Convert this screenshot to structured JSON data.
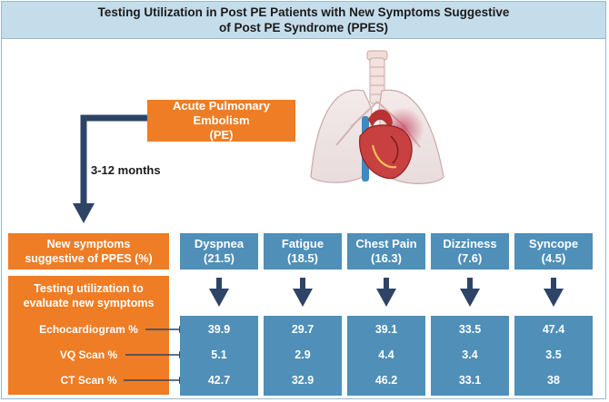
{
  "title": {
    "line1": "Testing Utilization in Post PE Patients with New Symptoms Suggestive",
    "line2": "of Post PE Syndrome (PPES)"
  },
  "pe_box": {
    "line1": "Acute Pulmonary Embolism",
    "line2": "(PE)"
  },
  "interval_label": "3-12 months",
  "new_symptoms_box": {
    "line1": "New symptoms",
    "line2": "suggestive of PPES (%)"
  },
  "testing_box": {
    "line1": "Testing utilization to",
    "line2": "evaluate new symptoms",
    "rows": [
      "Echocardiogram %",
      "VQ Scan %",
      "CT Scan %"
    ]
  },
  "symptoms": [
    {
      "name": "Dyspnea",
      "pct": "(21.5)",
      "echo": "39.9",
      "vq": "5.1",
      "ct": "42.7"
    },
    {
      "name": "Fatigue",
      "pct": "(18.5)",
      "echo": "29.7",
      "vq": "2.9",
      "ct": "32.9"
    },
    {
      "name": "Chest Pain",
      "pct": "(16.3)",
      "echo": "39.1",
      "vq": "4.4",
      "ct": "46.2"
    },
    {
      "name": "Dizziness",
      "pct": "(7.6)",
      "echo": "33.5",
      "vq": "3.4",
      "ct": "33.1"
    },
    {
      "name": "Syncope",
      "pct": "(4.5)",
      "echo": "47.4",
      "vq": "3.5",
      "ct": "38"
    }
  ],
  "colors": {
    "title_bg": "#c5dcea",
    "orange": "#ee7d25",
    "blue": "#4f8fb8",
    "arrow": "#2e4466"
  },
  "icons": [
    "lungs-heart-illustration"
  ]
}
